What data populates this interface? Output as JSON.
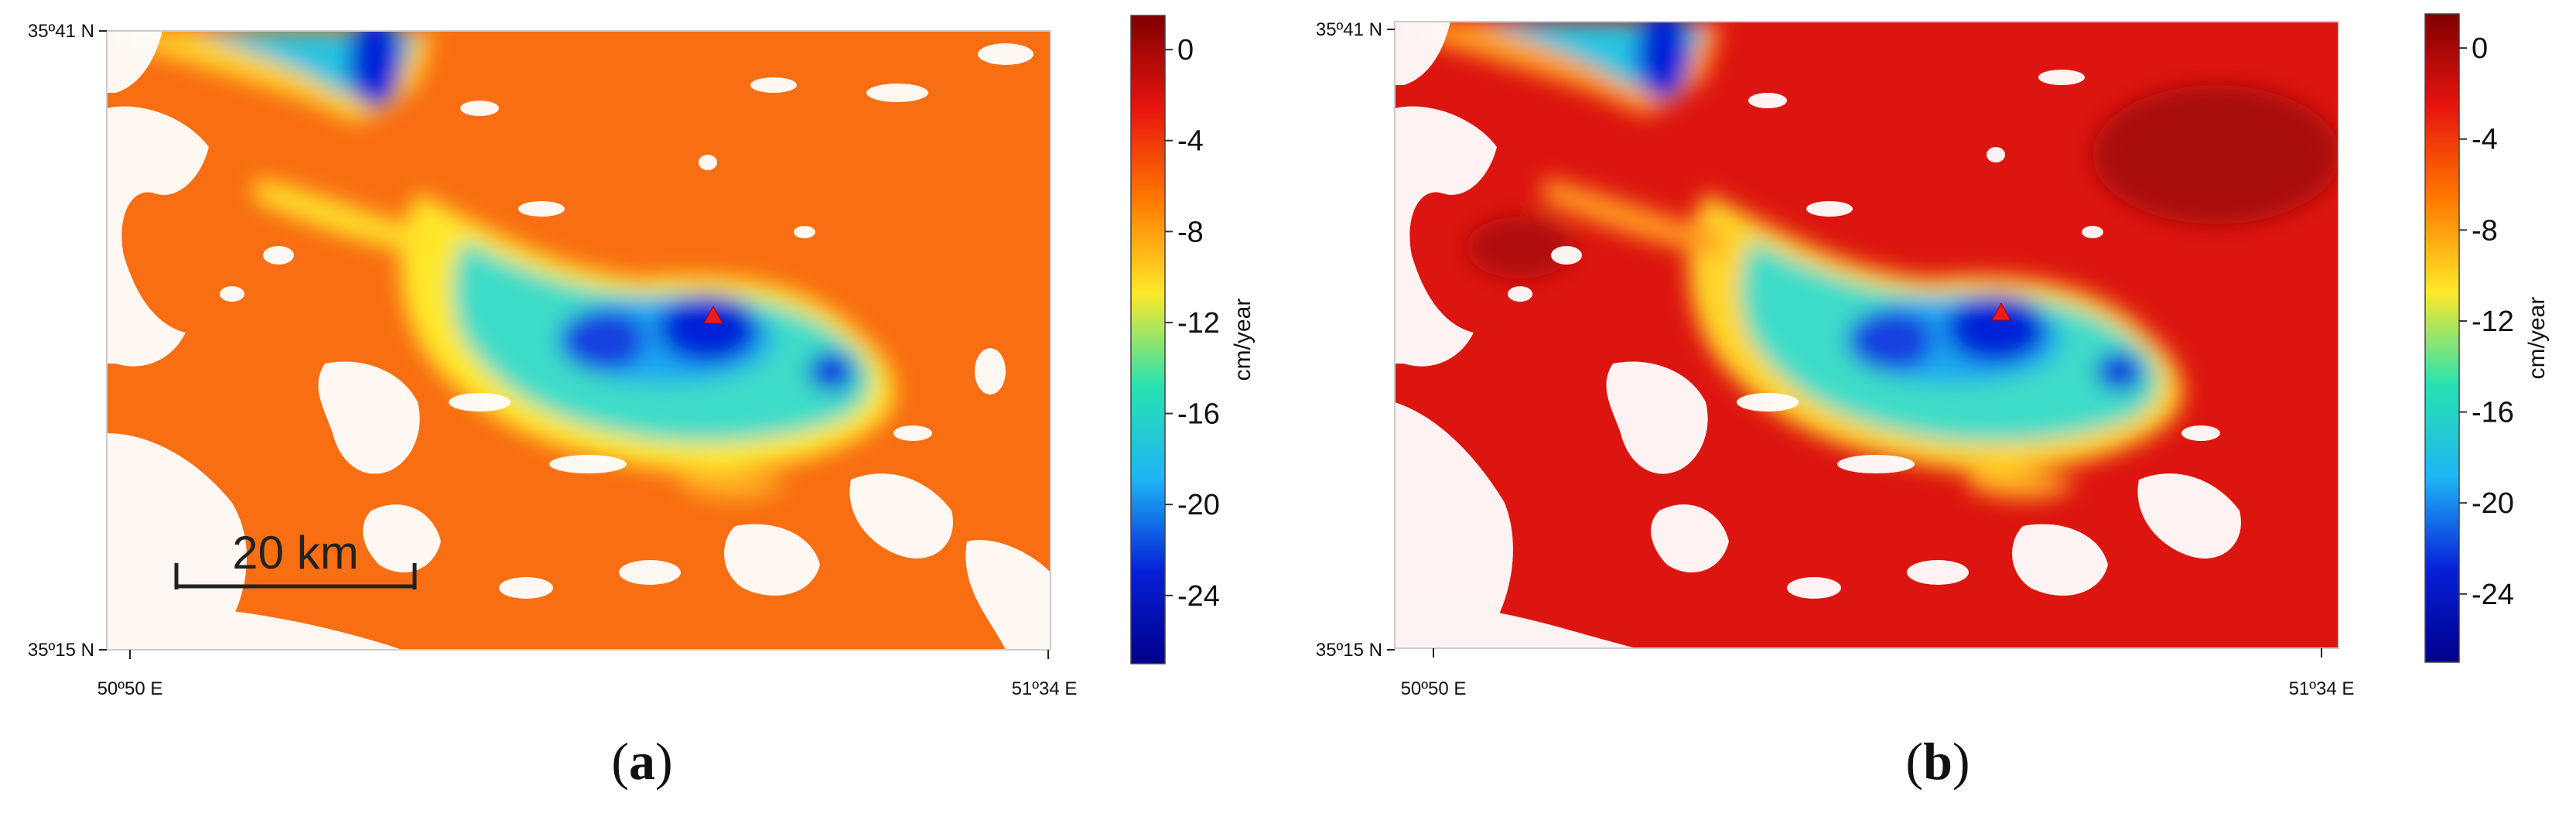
{
  "figure": {
    "colorbar": {
      "unit": "cm/year",
      "ticks": [
        "0",
        "-4",
        "-8",
        "-12",
        "-16",
        "-20",
        "-24"
      ],
      "tick_values": [
        0,
        -4,
        -8,
        -12,
        -16,
        -20,
        -24
      ],
      "range": [
        -27,
        1.5
      ],
      "stops": [
        "#7f0000",
        "#e8140e",
        "#ff7a00",
        "#ffe82a",
        "#27e2b0",
        "#1fb5f5",
        "#0620d8",
        "#00008b"
      ]
    },
    "axes": {
      "lat_top": "35º41 N",
      "lat_bottom": "35º15 N",
      "lon_left": "50º50 E",
      "lon_right": "51º34 E"
    },
    "panels": [
      {
        "id": "a",
        "label": "a",
        "background_color": "#f86e12",
        "has_scale_bar": true,
        "scale_bar_label": "20 km"
      },
      {
        "id": "b",
        "label": "b",
        "background_color": "#dc1510",
        "has_scale_bar": false,
        "scale_bar_label": ""
      }
    ],
    "marker_color": "#e81c1c"
  }
}
